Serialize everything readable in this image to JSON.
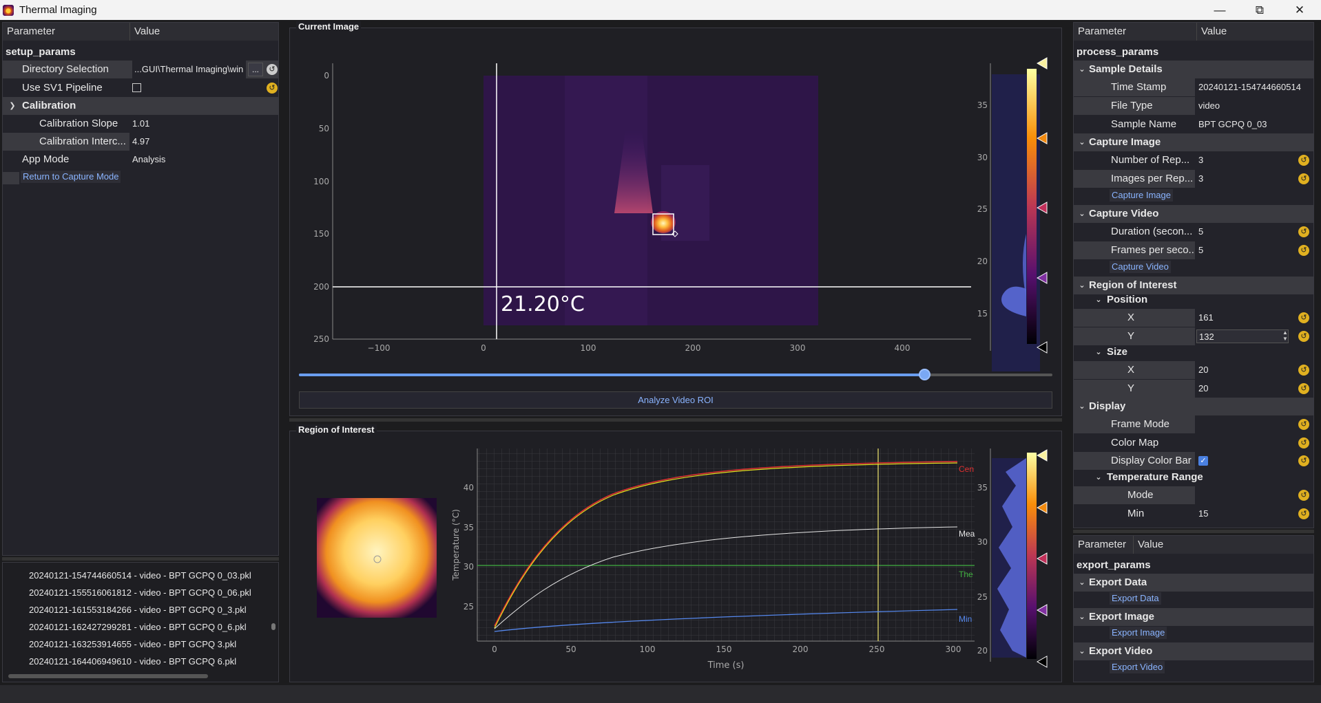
{
  "window": {
    "title": "Thermal Imaging"
  },
  "left": {
    "header": {
      "param": "Parameter",
      "value": "Value"
    },
    "root": "setup_params",
    "rows": [
      {
        "label": "Directory Selection",
        "value": "...GUI\\Thermal Imaging\\win",
        "browse": "..."
      },
      {
        "label": "Use SV1 Pipeline",
        "value": ""
      },
      {
        "label": "Calibration"
      },
      {
        "label": "Calibration Slope",
        "value": "1.01"
      },
      {
        "label": "Calibration Interc...",
        "value": "4.97"
      },
      {
        "label": "App Mode",
        "value": "Analysis"
      }
    ],
    "return_btn": "Return to Capture Mode",
    "files": [
      "20240121-154744660514 - video - BPT GCPQ 0_03.pkl",
      "20240121-155516061812 - video - BPT GCPQ 0_06.pkl",
      "20240121-161553184266 - video - BPT GCPQ 0_3.pkl",
      "20240121-162427299281 - video - BPT GCPQ 0_6.pkl",
      "20240121-163253914655 - video - BPT GCPQ 3.pkl",
      "20240121-164406949610 - video - BPT GCPQ 6.pkl"
    ]
  },
  "center": {
    "current_image": {
      "title": "Current Image",
      "readout": "21.20°C",
      "y_ticks": [
        "0",
        "50",
        "100",
        "150",
        "200",
        "250"
      ],
      "x_ticks": [
        "−100",
        "0",
        "100",
        "200",
        "300",
        "400"
      ],
      "bar_ticks": [
        "35",
        "30",
        "25",
        "20",
        "15"
      ],
      "slider_fraction": 0.83,
      "analyze_btn": "Analyze Video ROI"
    },
    "roi": {
      "title": "Region of Interest",
      "xlabel": "Time (s)",
      "ylabel": "Temperature (°C)",
      "x_ticks": [
        "0",
        "50",
        "100",
        "150",
        "200",
        "250",
        "300"
      ],
      "y_ticks": [
        "40",
        "35",
        "30",
        "25"
      ],
      "bar_ticks": [
        "35",
        "30",
        "25",
        "20"
      ],
      "series_labels": [
        "Cen",
        "Mea",
        "The",
        "Min"
      ],
      "colors": {
        "center": "#e03030",
        "max": "#e8e020",
        "mean": "#e8e8e8",
        "threshold": "#40b040",
        "min": "#5588ee"
      }
    }
  },
  "right": {
    "header": {
      "param": "Parameter",
      "value": "Value"
    },
    "root": "process_params",
    "sample_details": "Sample Details",
    "time_stamp": {
      "label": "Time Stamp",
      "value": "20240121-154744660514"
    },
    "file_type": {
      "label": "File Type",
      "value": "video"
    },
    "sample_name": {
      "label": "Sample Name",
      "value": "BPT GCPQ 0_03"
    },
    "capture_image": "Capture Image",
    "num_rep": {
      "label": "Number of Rep...",
      "value": "3"
    },
    "img_per_rep": {
      "label": "Images per Rep...",
      "value": "3"
    },
    "capture_image_btn": "Capture Image",
    "capture_video": "Capture Video",
    "duration": {
      "label": "Duration (secon...",
      "value": "5"
    },
    "fps": {
      "label": "Frames per seco...",
      "value": "5"
    },
    "capture_video_btn": "Capture Video",
    "roi": "Region of Interest",
    "position": "Position",
    "pos_x": {
      "label": "X",
      "value": "161"
    },
    "pos_y": {
      "label": "Y",
      "value": "132"
    },
    "size": "Size",
    "size_x": {
      "label": "X",
      "value": "20"
    },
    "size_y": {
      "label": "Y",
      "value": "20"
    },
    "display": "Display",
    "frame_mode": {
      "label": "Frame Mode"
    },
    "color_map": {
      "label": "Color Map"
    },
    "display_color_bar": {
      "label": "Display Color Bar"
    },
    "temp_range": "Temperature Range",
    "mode": {
      "label": "Mode"
    },
    "min": {
      "label": "Min",
      "value": "15"
    },
    "export_header": {
      "param": "Parameter",
      "value": "Value"
    },
    "export_root": "export_params",
    "export_data": "Export Data",
    "export_data_btn": "Export Data",
    "export_image": "Export Image",
    "export_image_btn": "Export Image",
    "export_video": "Export Video",
    "export_video_btn": "Export Video"
  }
}
